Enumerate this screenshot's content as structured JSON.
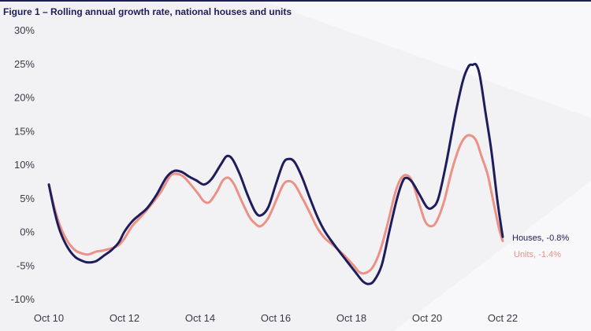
{
  "title": "Figure 1 – Rolling annual growth rate, national houses and units",
  "colors": {
    "houses": "#1e1d5c",
    "units": "#eb9186",
    "title": "#1e1d5c",
    "background": "#f2f2f4"
  },
  "chart_data": {
    "type": "line",
    "title": "Figure 1 – Rolling annual growth rate, national houses and units",
    "xlabel": "",
    "ylabel": "",
    "xlim": [
      2010.75,
      2022.75
    ],
    "ylim": [
      -10,
      30
    ],
    "grid": false,
    "legend": "end-of-line labels, right",
    "x_ticks": [
      2010.75,
      2012.75,
      2014.75,
      2016.75,
      2018.75,
      2020.75,
      2022.75
    ],
    "x_tick_labels": [
      "Oct 10",
      "Oct 12",
      "Oct 14",
      "Oct 16",
      "Oct 18",
      "Oct 20",
      "Oct 22"
    ],
    "y_ticks": [
      30,
      25,
      20,
      15,
      10,
      5,
      0,
      -5,
      -10
    ],
    "y_tick_labels": [
      "30%",
      "25%",
      "20%",
      "15%",
      "10%",
      "5%",
      "0%",
      "-5%",
      "-10%"
    ],
    "series": [
      {
        "name": "Houses",
        "end_label": "Houses, -0.8%",
        "points": [
          [
            2010.75,
            7.0
          ],
          [
            2010.9,
            3.0
          ],
          [
            2011.05,
            0.0
          ],
          [
            2011.25,
            -2.4
          ],
          [
            2011.45,
            -3.8
          ],
          [
            2011.65,
            -4.4
          ],
          [
            2011.8,
            -4.6
          ],
          [
            2012.0,
            -4.4
          ],
          [
            2012.2,
            -3.6
          ],
          [
            2012.4,
            -2.8
          ],
          [
            2012.6,
            -1.6
          ],
          [
            2012.75,
            0.0
          ],
          [
            2012.95,
            1.5
          ],
          [
            2013.15,
            2.5
          ],
          [
            2013.35,
            3.5
          ],
          [
            2013.6,
            5.5
          ],
          [
            2013.85,
            8.0
          ],
          [
            2014.05,
            9.0
          ],
          [
            2014.25,
            8.9
          ],
          [
            2014.45,
            8.2
          ],
          [
            2014.65,
            7.6
          ],
          [
            2014.85,
            7.0
          ],
          [
            2015.05,
            7.8
          ],
          [
            2015.3,
            10.0
          ],
          [
            2015.45,
            11.2
          ],
          [
            2015.6,
            10.8
          ],
          [
            2015.8,
            8.5
          ],
          [
            2016.0,
            5.5
          ],
          [
            2016.2,
            3.0
          ],
          [
            2016.35,
            2.4
          ],
          [
            2016.55,
            3.6
          ],
          [
            2016.75,
            7.0
          ],
          [
            2016.95,
            10.2
          ],
          [
            2017.1,
            10.8
          ],
          [
            2017.25,
            10.3
          ],
          [
            2017.45,
            8.0
          ],
          [
            2017.65,
            5.0
          ],
          [
            2017.85,
            2.2
          ],
          [
            2018.05,
            0.0
          ],
          [
            2018.3,
            -2.0
          ],
          [
            2018.6,
            -4.2
          ],
          [
            2018.85,
            -6.0
          ],
          [
            2019.05,
            -7.4
          ],
          [
            2019.2,
            -7.8
          ],
          [
            2019.35,
            -7.3
          ],
          [
            2019.55,
            -5.0
          ],
          [
            2019.75,
            0.0
          ],
          [
            2019.95,
            4.8
          ],
          [
            2020.1,
            7.4
          ],
          [
            2020.2,
            8.0
          ],
          [
            2020.35,
            7.4
          ],
          [
            2020.55,
            5.5
          ],
          [
            2020.75,
            3.6
          ],
          [
            2020.9,
            3.6
          ],
          [
            2021.05,
            5.0
          ],
          [
            2021.25,
            10.0
          ],
          [
            2021.5,
            17.5
          ],
          [
            2021.7,
            22.5
          ],
          [
            2021.85,
            24.6
          ],
          [
            2021.95,
            24.8
          ],
          [
            2022.05,
            24.8
          ],
          [
            2022.15,
            23.0
          ],
          [
            2022.3,
            17.5
          ],
          [
            2022.45,
            12.0
          ],
          [
            2022.6,
            5.0
          ],
          [
            2022.7,
            1.0
          ],
          [
            2022.75,
            -0.8
          ]
        ]
      },
      {
        "name": "Units",
        "end_label": "Units, -1.4%",
        "points": [
          [
            2010.75,
            7.0
          ],
          [
            2010.9,
            3.5
          ],
          [
            2011.05,
            0.8
          ],
          [
            2011.25,
            -1.5
          ],
          [
            2011.45,
            -2.8
          ],
          [
            2011.65,
            -3.3
          ],
          [
            2011.8,
            -3.4
          ],
          [
            2012.0,
            -3.0
          ],
          [
            2012.2,
            -2.8
          ],
          [
            2012.45,
            -2.4
          ],
          [
            2012.6,
            -2.0
          ],
          [
            2012.75,
            -1.0
          ],
          [
            2012.95,
            0.8
          ],
          [
            2013.15,
            2.0
          ],
          [
            2013.4,
            3.6
          ],
          [
            2013.7,
            5.8
          ],
          [
            2013.95,
            8.2
          ],
          [
            2014.1,
            8.6
          ],
          [
            2014.3,
            8.2
          ],
          [
            2014.5,
            7.0
          ],
          [
            2014.7,
            5.6
          ],
          [
            2014.85,
            4.5
          ],
          [
            2015.0,
            4.4
          ],
          [
            2015.2,
            6.0
          ],
          [
            2015.35,
            7.6
          ],
          [
            2015.5,
            8.0
          ],
          [
            2015.65,
            7.0
          ],
          [
            2015.85,
            4.5
          ],
          [
            2016.05,
            2.2
          ],
          [
            2016.2,
            1.2
          ],
          [
            2016.35,
            0.8
          ],
          [
            2016.55,
            2.0
          ],
          [
            2016.75,
            4.5
          ],
          [
            2016.95,
            7.0
          ],
          [
            2017.1,
            7.5
          ],
          [
            2017.25,
            7.0
          ],
          [
            2017.45,
            5.0
          ],
          [
            2017.65,
            2.8
          ],
          [
            2017.85,
            0.5
          ],
          [
            2018.05,
            -1.0
          ],
          [
            2018.3,
            -2.2
          ],
          [
            2018.55,
            -3.5
          ],
          [
            2018.8,
            -5.0
          ],
          [
            2018.95,
            -6.0
          ],
          [
            2019.1,
            -6.2
          ],
          [
            2019.3,
            -5.4
          ],
          [
            2019.5,
            -3.0
          ],
          [
            2019.7,
            1.0
          ],
          [
            2019.9,
            5.6
          ],
          [
            2020.05,
            7.8
          ],
          [
            2020.2,
            8.4
          ],
          [
            2020.35,
            7.5
          ],
          [
            2020.55,
            4.0
          ],
          [
            2020.7,
            1.5
          ],
          [
            2020.85,
            0.8
          ],
          [
            2021.0,
            1.5
          ],
          [
            2021.2,
            4.5
          ],
          [
            2021.4,
            9.0
          ],
          [
            2021.6,
            12.5
          ],
          [
            2021.75,
            14.0
          ],
          [
            2021.9,
            14.3
          ],
          [
            2022.05,
            13.5
          ],
          [
            2022.2,
            11.0
          ],
          [
            2022.35,
            8.5
          ],
          [
            2022.5,
            4.5
          ],
          [
            2022.65,
            0.5
          ],
          [
            2022.75,
            -1.4
          ]
        ]
      }
    ]
  }
}
